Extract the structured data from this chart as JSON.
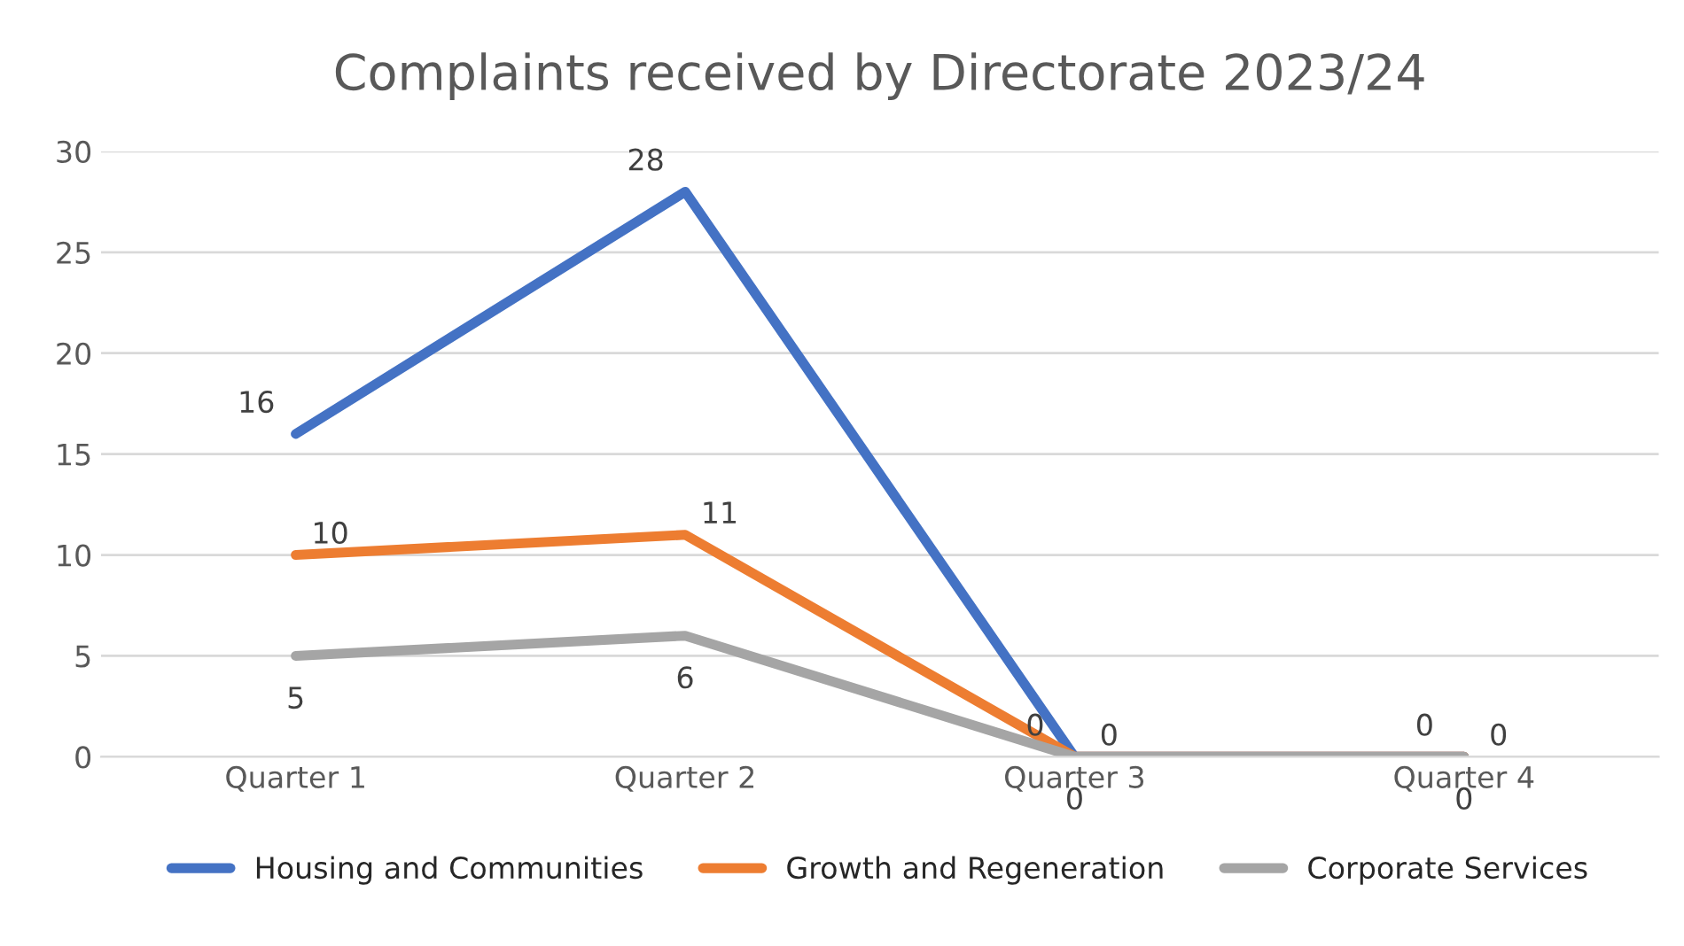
{
  "chart_data": {
    "type": "line",
    "title": "Complaints received by Directorate 2023/24",
    "categories": [
      "Quarter 1",
      "Quarter 2",
      "Quarter 3",
      "Quarter 4"
    ],
    "series": [
      {
        "name": "Housing and Communities",
        "color": "#4472c4",
        "values": [
          16,
          28,
          0,
          0
        ]
      },
      {
        "name": "Growth and Regeneration",
        "color": "#ed7d31",
        "values": [
          10,
          11,
          0,
          0
        ]
      },
      {
        "name": "Corporate Services",
        "color": "#a5a5a5",
        "values": [
          5,
          6,
          0,
          0
        ]
      }
    ],
    "ylim": [
      0,
      30
    ],
    "yticks": [
      0,
      5,
      10,
      15,
      20,
      25,
      30
    ],
    "grid": "y",
    "legend": "bottom",
    "data_labels": true,
    "marker": "none",
    "line_style": "solid"
  }
}
